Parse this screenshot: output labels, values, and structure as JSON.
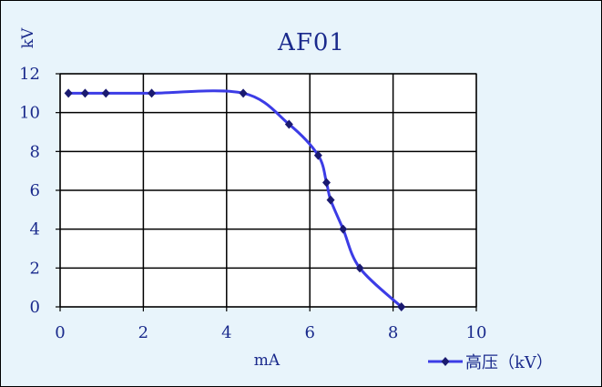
{
  "chart_data": {
    "type": "line",
    "title": "AF01",
    "xlabel": "mA",
    "ylabel": "kV",
    "xlim": [
      0,
      10
    ],
    "ylim": [
      0,
      12
    ],
    "xticks": [
      0,
      2,
      4,
      6,
      8,
      10
    ],
    "yticks": [
      0,
      2,
      4,
      6,
      8,
      10,
      12
    ],
    "grid": true,
    "legend_position": "bottom-right",
    "series": [
      {
        "name": "高压（kV）",
        "color": "#3c3ce6",
        "marker_color": "#1a1a70",
        "x": [
          0.2,
          0.6,
          1.1,
          2.2,
          4.4,
          5.5,
          6.2,
          6.4,
          6.5,
          6.8,
          7.2,
          8.2
        ],
        "y": [
          11,
          11,
          11,
          11,
          11,
          9.4,
          7.8,
          6.4,
          5.5,
          4,
          2,
          0
        ]
      }
    ]
  },
  "colors": {
    "background": "#e8f4fb",
    "plot_area": "#ffffff",
    "grid": "#000000",
    "text": "#1a2a8c"
  }
}
